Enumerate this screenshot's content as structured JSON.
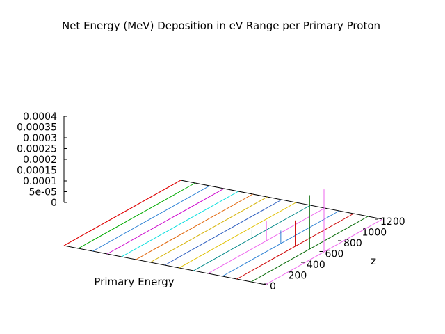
{
  "chart_data": {
    "type": "line",
    "title": "Net Energy (MeV) Deposition in eV Range per Primary Proton",
    "xlabel": "Primary Energy",
    "ylabel": "z",
    "zlabel": "",
    "z_ticks": [
      "0.0004",
      "0.00035",
      "0.0003",
      "0.00025",
      "0.0002",
      "0.00015",
      "0.0001",
      "5e-05",
      "0"
    ],
    "depth_ticks": [
      "0",
      "200",
      "400",
      "600",
      "800",
      "1000",
      "1200"
    ],
    "zlim": [
      0,
      0.0004
    ],
    "depth_range": [
      0,
      1200
    ],
    "grid": false,
    "legend": "none",
    "series": [
      {
        "color": "#ff0000",
        "values": []
      },
      {
        "color": "#00aa00",
        "values": []
      },
      {
        "color": "#2a7fd4",
        "values": []
      },
      {
        "color": "#cc00cc",
        "values": []
      },
      {
        "color": "#00dddd",
        "values": []
      },
      {
        "color": "#e06000",
        "values": []
      },
      {
        "color": "#d4b000",
        "values": []
      },
      {
        "color": "#3060c0",
        "values": []
      },
      {
        "color": "#e0c000",
        "values": []
      },
      {
        "color": "#008888",
        "values": [
          {
            "depth": 160,
            "value": 4e-05
          }
        ]
      },
      {
        "color": "#ee66ee",
        "values": [
          {
            "depth": 700,
            "value": 9e-05
          }
        ]
      },
      {
        "color": "#2a7fd4",
        "values": [
          {
            "depth": 580,
            "value": 6e-05
          }
        ]
      },
      {
        "color": "#cc0000",
        "values": [
          {
            "depth": 880,
            "value": 0.00012
          }
        ]
      },
      {
        "color": "#006600",
        "values": [
          {
            "depth": 900,
            "value": 0.00025
          }
        ]
      },
      {
        "color": "#ee66ee",
        "values": [
          {
            "depth": 960,
            "value": 0.00029
          }
        ]
      }
    ]
  }
}
